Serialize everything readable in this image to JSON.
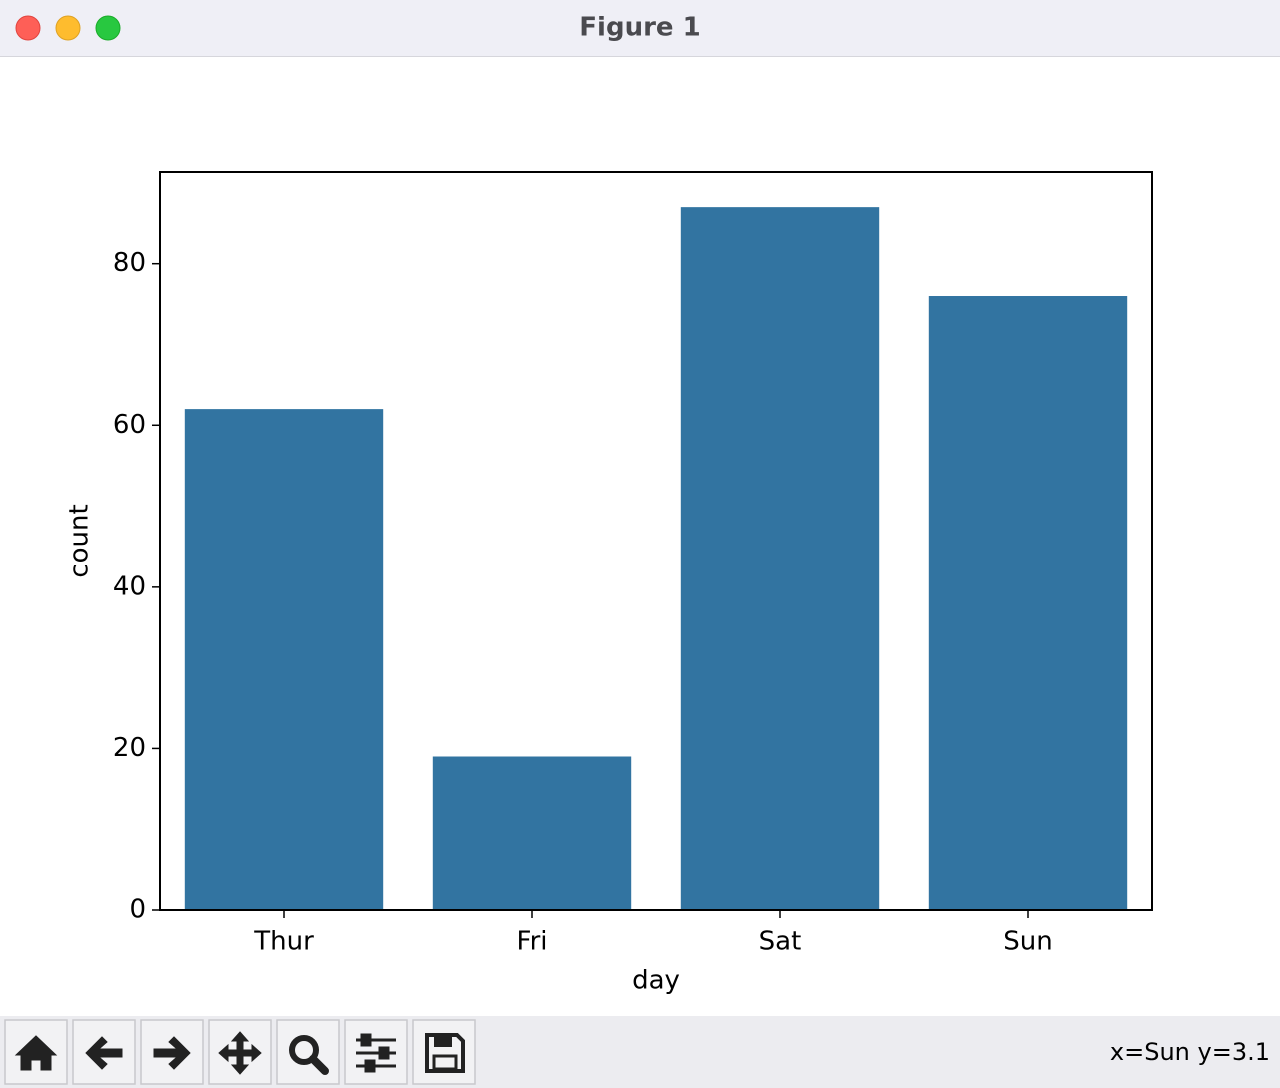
{
  "window": {
    "title": "Figure 1",
    "status": "x=Sun y=3.1"
  },
  "chart_data": {
    "type": "bar",
    "xlabel": "day",
    "ylabel": "count",
    "categories": [
      "Thur",
      "Fri",
      "Sat",
      "Sun"
    ],
    "values": [
      62,
      19,
      87,
      76
    ],
    "color": "#3274a1",
    "ylim": [
      0,
      91.35
    ],
    "yticks": [
      0,
      20,
      40,
      60,
      80
    ],
    "grid": false
  }
}
